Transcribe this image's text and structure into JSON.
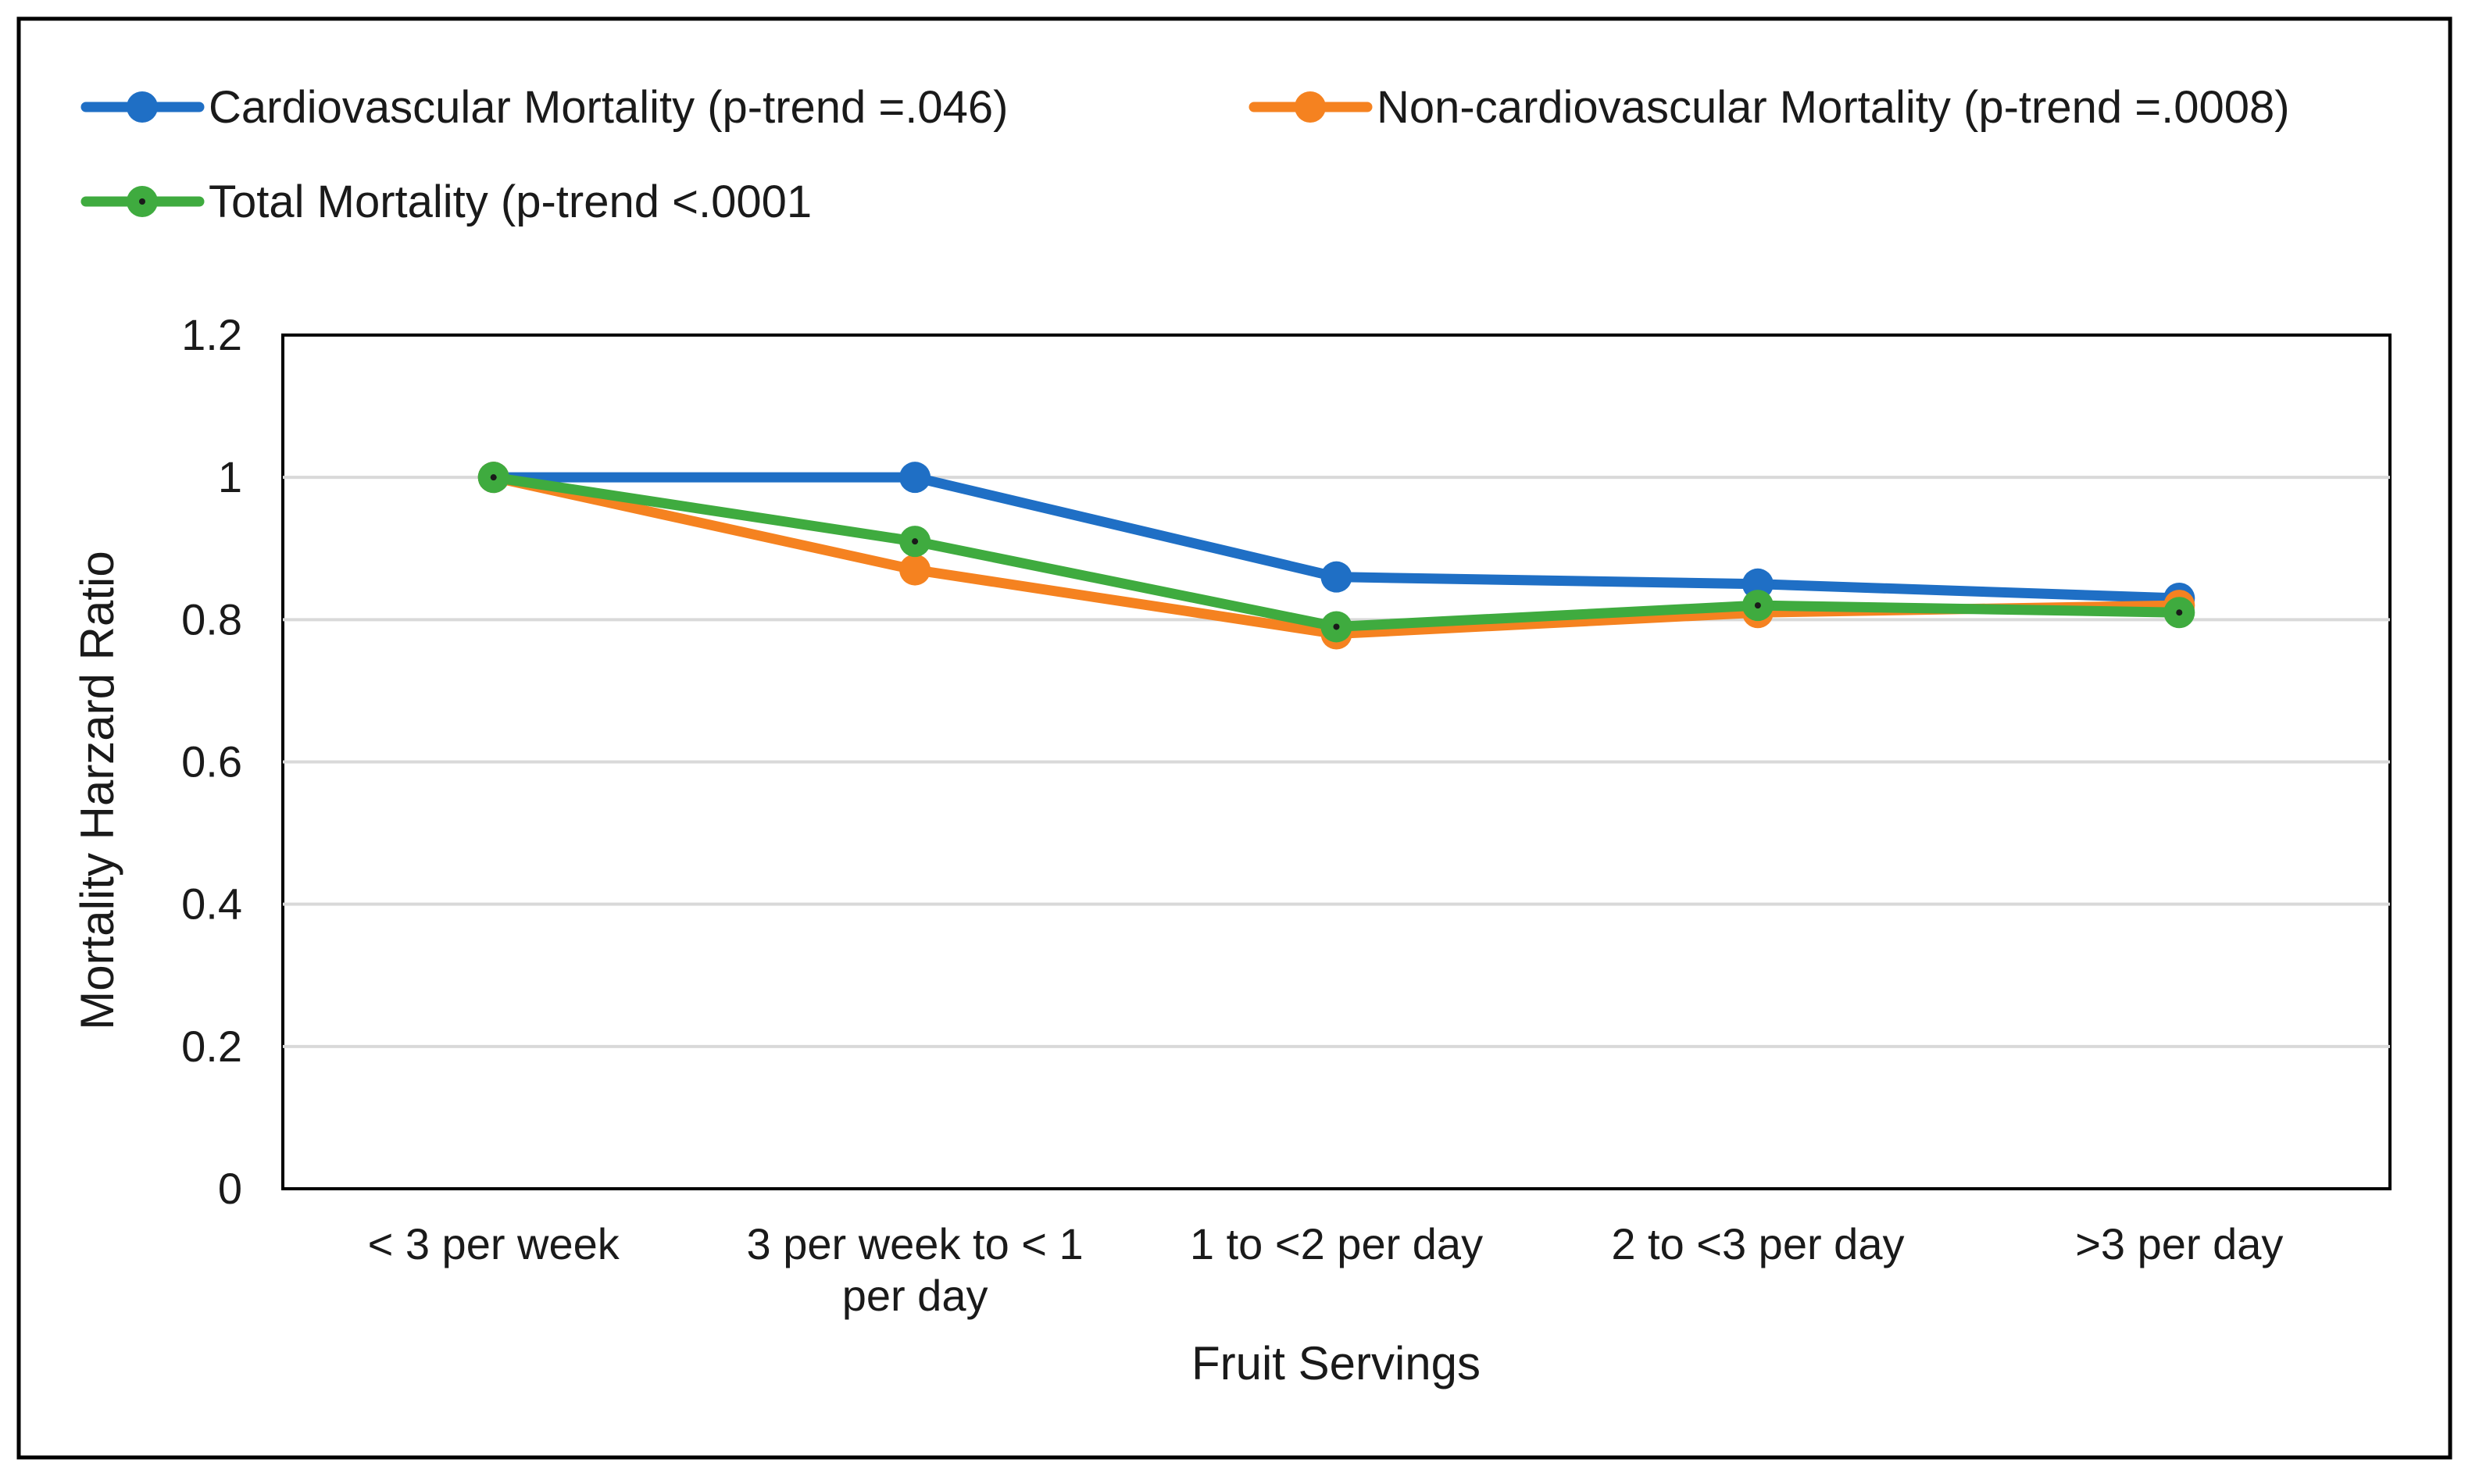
{
  "chart_data": {
    "type": "line",
    "title": "",
    "xlabel": "Fruit Servings",
    "ylabel": "Mortality Harzard Ratio",
    "ylim": [
      0,
      1.2
    ],
    "yticks": [
      "0",
      "0.2",
      "0.4",
      "0.6",
      "0.8",
      "1",
      "1.2"
    ],
    "ytick_values": [
      0,
      0.2,
      0.4,
      0.6,
      0.8,
      1.0,
      1.2
    ],
    "grid": true,
    "legend_position": "top",
    "categories": [
      [
        "< 3 per week"
      ],
      [
        "3 per week to < 1",
        "per day"
      ],
      [
        "1 to <2 per day"
      ],
      [
        "2 to <3 per day"
      ],
      [
        ">3 per day"
      ]
    ],
    "series": [
      {
        "name": "Cardiovascular Mortality (p-trend =.046)",
        "color": "#1f6fc5",
        "values": [
          1.0,
          1.0,
          0.86,
          0.85,
          0.83
        ]
      },
      {
        "name": "Non-cardiovascular Mortality (p-trend =.0008)",
        "color": "#f58220",
        "values": [
          1.0,
          0.87,
          0.78,
          0.81,
          0.82
        ]
      },
      {
        "name": "Total Mortality (p-trend <.0001",
        "color": "#3fab3f",
        "values": [
          1.0,
          0.91,
          0.79,
          0.82,
          0.81
        ]
      }
    ]
  }
}
